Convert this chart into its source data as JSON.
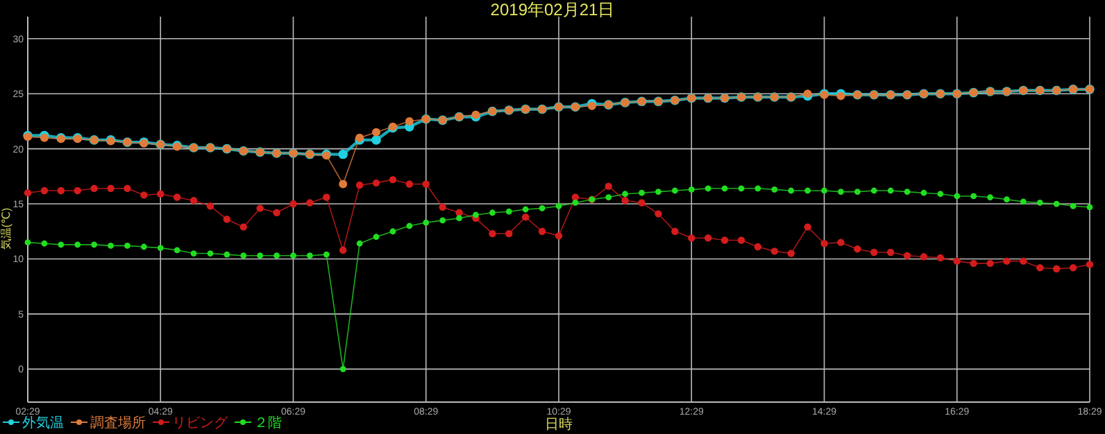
{
  "chart_data": {
    "type": "line",
    "title": "2019年02月21日",
    "xlabel": "日時",
    "ylabel": "気温(℃)",
    "x": [
      "2019-02-21T02:29",
      "2019-02-21T02:44",
      "2019-02-21T02:59",
      "2019-02-21T03:14",
      "2019-02-21T03:29",
      "2019-02-21T03:44",
      "2019-02-21T03:59",
      "2019-02-21T04:14",
      "2019-02-21T04:29",
      "2019-02-21T04:44",
      "2019-02-21T04:59",
      "2019-02-21T05:14",
      "2019-02-21T05:29",
      "2019-02-21T05:44",
      "2019-02-21T05:59",
      "2019-02-21T06:14",
      "2019-02-21T06:29",
      "2019-02-21T06:44",
      "2019-02-21T06:59",
      "2019-02-21T07:14",
      "2019-02-21T07:29",
      "2019-02-21T07:44",
      "2019-02-21T07:59",
      "2019-02-21T08:14",
      "2019-02-21T08:29",
      "2019-02-21T08:44",
      "2019-02-21T08:59",
      "2019-02-21T09:14",
      "2019-02-21T09:29",
      "2019-02-21T09:44",
      "2019-02-21T09:59",
      "2019-02-21T10:14",
      "2019-02-21T10:29",
      "2019-02-21T10:44",
      "2019-02-21T10:59",
      "2019-02-21T11:14",
      "2019-02-21T11:29",
      "2019-02-21T11:44",
      "2019-02-21T11:59",
      "2019-02-21T12:14",
      "2019-02-21T12:29",
      "2019-02-21T12:44",
      "2019-02-21T12:59",
      "2019-02-21T13:14",
      "2019-02-21T13:29",
      "2019-02-21T13:44",
      "2019-02-21T13:59",
      "2019-02-21T14:14",
      "2019-02-21T14:29",
      "2019-02-21T14:44",
      "2019-02-21T14:59",
      "2019-02-21T15:14",
      "2019-02-21T15:29",
      "2019-02-21T15:44",
      "2019-02-21T15:59",
      "2019-02-21T16:14",
      "2019-02-21T16:29",
      "2019-02-21T16:44",
      "2019-02-21T16:59",
      "2019-02-21T17:14",
      "2019-02-21T17:29",
      "2019-02-21T17:44",
      "2019-02-21T17:59",
      "2019-02-21T18:14",
      "2019-02-21T18:29"
    ],
    "series": [
      {
        "name": "外気温",
        "color": "#22d0e0",
        "values": [
          21.2,
          21.2,
          21.0,
          21.0,
          20.8,
          20.8,
          20.6,
          20.6,
          20.4,
          20.3,
          20.1,
          20.1,
          20.0,
          19.8,
          19.7,
          19.6,
          19.6,
          19.5,
          19.5,
          19.5,
          20.8,
          20.8,
          21.9,
          22.0,
          22.7,
          22.6,
          22.9,
          22.9,
          23.4,
          23.5,
          23.6,
          23.6,
          23.8,
          23.8,
          24.1,
          24.0,
          24.2,
          24.3,
          24.3,
          24.4,
          24.6,
          24.6,
          24.6,
          24.7,
          24.7,
          24.7,
          24.7,
          24.8,
          25.0,
          25.0,
          24.9,
          24.9,
          24.9,
          24.9,
          25.0,
          25.0,
          25.0,
          25.1,
          25.2,
          25.2,
          25.3,
          25.3,
          25.3,
          25.4,
          25.4
        ]
      },
      {
        "name": "調査場所",
        "color": "#e07b39",
        "values": [
          21.1,
          21.0,
          20.9,
          20.9,
          20.8,
          20.7,
          20.6,
          20.5,
          20.4,
          20.2,
          20.1,
          20.1,
          20.0,
          19.8,
          19.7,
          19.6,
          19.6,
          19.5,
          19.4,
          16.8,
          21.0,
          21.5,
          22.0,
          22.5,
          22.7,
          22.6,
          22.9,
          23.1,
          23.4,
          23.5,
          23.6,
          23.6,
          23.8,
          23.8,
          23.9,
          24.0,
          24.2,
          24.3,
          24.3,
          24.4,
          24.6,
          24.6,
          24.6,
          24.7,
          24.7,
          24.7,
          24.7,
          25.0,
          24.9,
          24.8,
          24.9,
          24.9,
          24.9,
          24.9,
          25.0,
          25.0,
          25.0,
          25.1,
          25.2,
          25.2,
          25.3,
          25.3,
          25.3,
          25.4,
          25.4
        ]
      },
      {
        "name": "リビング",
        "color": "#d41c1c",
        "values": [
          16.0,
          16.2,
          16.2,
          16.2,
          16.4,
          16.4,
          16.4,
          15.8,
          15.9,
          15.6,
          15.3,
          14.8,
          13.6,
          12.9,
          14.6,
          14.2,
          15.0,
          15.1,
          15.6,
          10.8,
          16.7,
          16.9,
          17.2,
          16.8,
          16.8,
          14.7,
          14.2,
          13.7,
          12.3,
          12.3,
          13.8,
          12.5,
          12.1,
          15.6,
          15.4,
          16.6,
          15.3,
          15.1,
          14.1,
          12.5,
          11.9,
          11.9,
          11.7,
          11.7,
          11.1,
          10.7,
          10.5,
          12.9,
          11.4,
          11.5,
          10.9,
          10.6,
          10.6,
          10.3,
          10.2,
          10.1,
          9.8,
          9.6,
          9.6,
          9.8,
          9.8,
          9.2,
          9.1,
          9.2,
          9.5
        ]
      },
      {
        "name": "２階",
        "color": "#22dd22",
        "values": [
          11.5,
          11.4,
          11.3,
          11.3,
          11.3,
          11.2,
          11.2,
          11.1,
          11.0,
          10.8,
          10.5,
          10.5,
          10.4,
          10.3,
          10.3,
          10.3,
          10.3,
          10.3,
          10.4,
          0,
          11.4,
          12.0,
          12.5,
          13.0,
          13.3,
          13.5,
          13.7,
          14.0,
          14.2,
          14.3,
          14.5,
          14.6,
          14.8,
          15.1,
          15.4,
          15.6,
          15.9,
          16.0,
          16.1,
          16.2,
          16.3,
          16.4,
          16.4,
          16.4,
          16.4,
          16.3,
          16.2,
          16.2,
          16.2,
          16.1,
          16.1,
          16.2,
          16.2,
          16.1,
          16.0,
          15.9,
          15.7,
          15.7,
          15.6,
          15.4,
          15.2,
          15.1,
          15.0,
          14.8,
          14.7
        ]
      }
    ],
    "xlim": [
      "2019-02-21T02:29",
      "2019-02-21T18:29"
    ],
    "xticks": [
      {
        "value": "2019-02-21T02:29",
        "label": "02:29"
      },
      {
        "value": "2019-02-21T04:29",
        "label": "04:29"
      },
      {
        "value": "2019-02-21T06:29",
        "label": "06:29"
      },
      {
        "value": "2019-02-21T08:29",
        "label": "08:29"
      },
      {
        "value": "2019-02-21T10:29",
        "label": "10:29"
      },
      {
        "value": "2019-02-21T12:29",
        "label": "12:29"
      },
      {
        "value": "2019-02-21T14:29",
        "label": "14:29"
      },
      {
        "value": "2019-02-21T16:29",
        "label": "16:29"
      },
      {
        "value": "2019-02-21T18:29",
        "label": "18:29"
      }
    ],
    "ylim": [
      -3,
      32
    ],
    "yticks": [
      0,
      5,
      10,
      15,
      20,
      25,
      30
    ],
    "grid": true,
    "legend": "bottom left",
    "marker": "circle",
    "line_style": "solid"
  }
}
